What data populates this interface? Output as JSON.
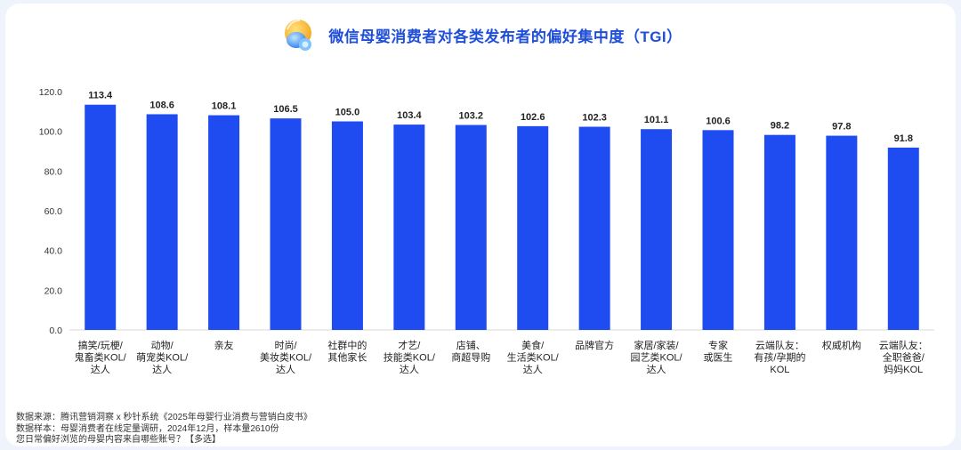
{
  "header": {
    "title": "微信母婴消费者对各类发布者的偏好集中度（TGI）"
  },
  "chart_data": {
    "type": "bar",
    "categories": [
      [
        "搞笑/玩梗/",
        "鬼畜类KOL/",
        "达人"
      ],
      [
        "动物/",
        "萌宠类KOL/",
        "达人"
      ],
      [
        "亲友"
      ],
      [
        "时尚/",
        "美妆类KOL/",
        "达人"
      ],
      [
        "社群中的",
        "其他家长"
      ],
      [
        "才艺/",
        "技能类KOL/",
        "达人"
      ],
      [
        "店铺、",
        "商超导购"
      ],
      [
        "美食/",
        "生活类KOL/",
        "达人"
      ],
      [
        "品牌官方"
      ],
      [
        "家居/家装/",
        "园艺类KOL/",
        "达人"
      ],
      [
        "专家",
        "或医生"
      ],
      [
        "云端队友：",
        "有孩/孕期的",
        "KOL"
      ],
      [
        "权威机构"
      ],
      [
        "云端队友：",
        "全职爸爸/",
        "妈妈KOL"
      ]
    ],
    "values": [
      113.4,
      108.6,
      108.1,
      106.5,
      105.0,
      103.4,
      103.2,
      102.6,
      102.3,
      101.1,
      100.6,
      98.2,
      97.8,
      91.8
    ],
    "value_labels": [
      "113.4",
      "108.6",
      "108.1",
      "106.5",
      "105.0",
      "103.4",
      "103.2",
      "102.6",
      "102.3",
      "101.1",
      "100.6",
      "98.2",
      "97.8",
      "91.8"
    ],
    "ylim": [
      0,
      120
    ],
    "yticks": [
      "0.0",
      "20.0",
      "40.0",
      "60.0",
      "80.0",
      "100.0",
      "120.0"
    ],
    "grid": false,
    "bar_color": "#1f4cf0"
  },
  "footer": {
    "source": "数据来源：腾讯营销洞察 x 秒针系统《2025年母婴行业消费与营销白皮书》",
    "sample": "数据样本：母婴消费者在线定量调研，2024年12月，样本量2610份",
    "question": "您日常偏好浏览的母婴内容来自哪些账号？【多选】"
  },
  "colors": {
    "title": "#1f4fd8",
    "bar": "#1f4cf0",
    "background": "#eef3fc"
  }
}
